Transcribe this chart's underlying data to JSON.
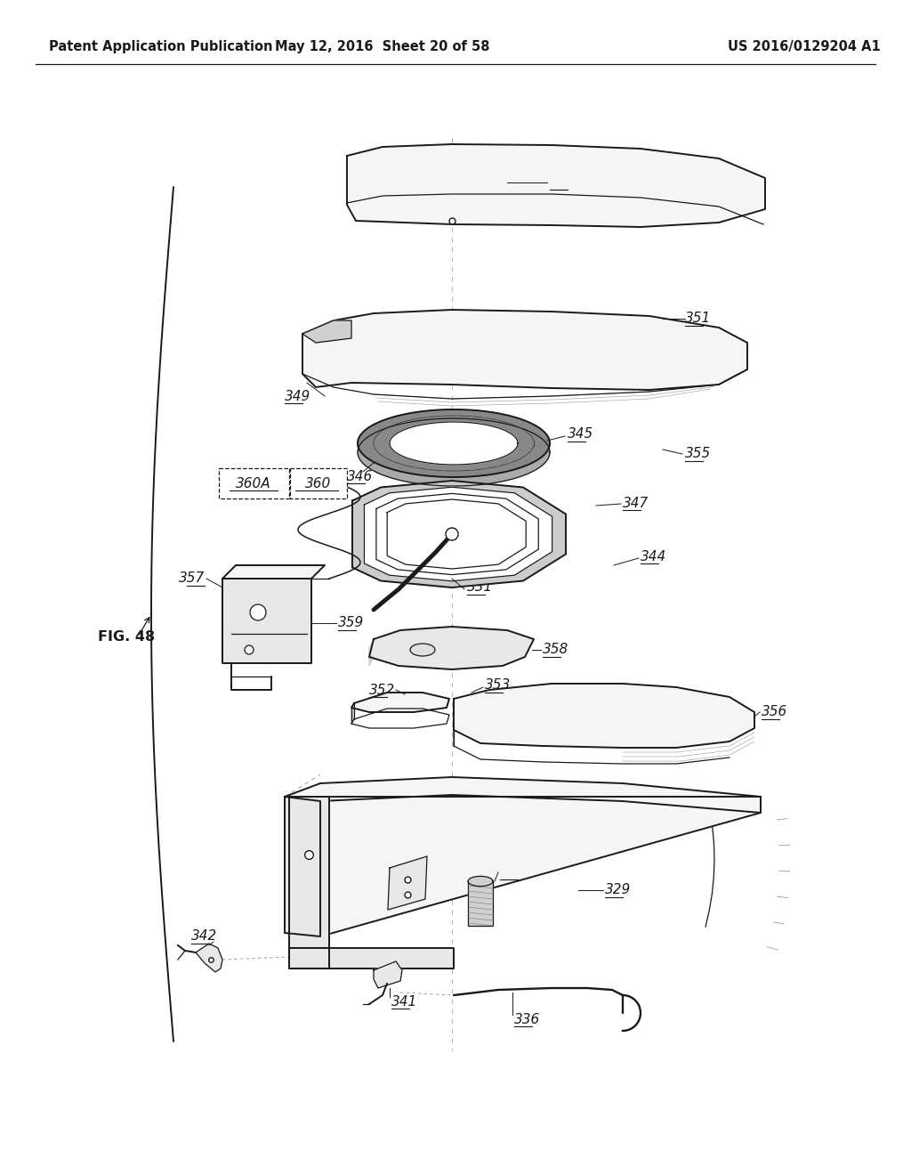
{
  "header_left": "Patent Application Publication",
  "header_mid": "May 12, 2016  Sheet 20 of 58",
  "header_right": "US 2016/0129204 A1",
  "fig_label": "FIG. 48",
  "bg_color": "#ffffff",
  "lc": "#1a1a1a",
  "lfl": "#f5f5f5",
  "lfm": "#e8e8e8",
  "lfd": "#d0d0d0",
  "lfw": "#c0c0c0"
}
